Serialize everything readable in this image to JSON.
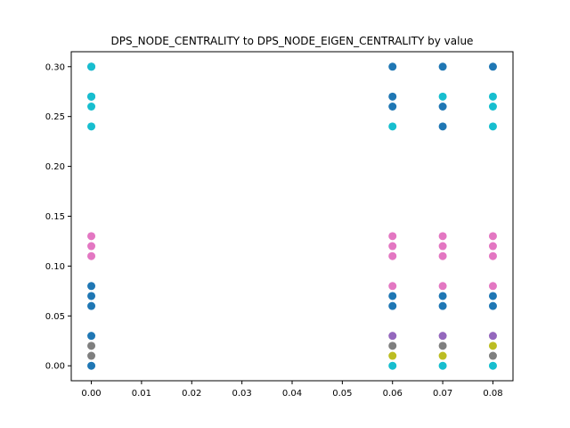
{
  "chart_data": {
    "type": "scatter",
    "title": "DPS_NODE_CENTRALITY to DPS_NODE_EIGEN_CENTRALITY by value",
    "xlabel": "",
    "ylabel": "",
    "xlim": [
      -0.004,
      0.084
    ],
    "ylim": [
      -0.015,
      0.315
    ],
    "xticks": [
      0.0,
      0.01,
      0.02,
      0.03,
      0.04,
      0.05,
      0.06,
      0.07,
      0.08
    ],
    "xtick_labels": [
      "0.00",
      "0.01",
      "0.02",
      "0.03",
      "0.04",
      "0.05",
      "0.06",
      "0.07",
      "0.08"
    ],
    "yticks": [
      0.0,
      0.05,
      0.1,
      0.15,
      0.2,
      0.25,
      0.3
    ],
    "ytick_labels": [
      "0.00",
      "0.05",
      "0.10",
      "0.15",
      "0.20",
      "0.25",
      "0.30"
    ],
    "grid": false,
    "series": [
      {
        "color": "#1f77b4",
        "points": [
          [
            0,
            0.3
          ],
          [
            0,
            0.27
          ],
          [
            0,
            0.08
          ],
          [
            0,
            0.07
          ],
          [
            0,
            0.06
          ],
          [
            0,
            0.03
          ],
          [
            0,
            0.0
          ],
          [
            0.06,
            0.3
          ],
          [
            0.06,
            0.27
          ],
          [
            0.06,
            0.26
          ],
          [
            0.06,
            0.07
          ],
          [
            0.06,
            0.06
          ],
          [
            0.07,
            0.3
          ],
          [
            0.07,
            0.26
          ],
          [
            0.07,
            0.24
          ],
          [
            0.07,
            0.07
          ],
          [
            0.07,
            0.06
          ],
          [
            0.08,
            0.3
          ],
          [
            0.08,
            0.07
          ],
          [
            0.08,
            0.06
          ]
        ]
      },
      {
        "color": "#9467bd",
        "points": [
          [
            0.06,
            0.03
          ],
          [
            0.07,
            0.03
          ],
          [
            0.08,
            0.03
          ]
        ]
      },
      {
        "color": "#e377c2",
        "points": [
          [
            0,
            0.13
          ],
          [
            0,
            0.12
          ],
          [
            0,
            0.11
          ],
          [
            0.06,
            0.13
          ],
          [
            0.06,
            0.12
          ],
          [
            0.06,
            0.11
          ],
          [
            0.06,
            0.08
          ],
          [
            0.07,
            0.13
          ],
          [
            0.07,
            0.12
          ],
          [
            0.07,
            0.11
          ],
          [
            0.07,
            0.08
          ],
          [
            0.08,
            0.13
          ],
          [
            0.08,
            0.12
          ],
          [
            0.08,
            0.11
          ],
          [
            0.08,
            0.08
          ]
        ]
      },
      {
        "color": "#7f7f7f",
        "points": [
          [
            0,
            0.02
          ],
          [
            0,
            0.01
          ],
          [
            0.06,
            0.02
          ],
          [
            0.07,
            0.02
          ],
          [
            0.08,
            0.01
          ]
        ]
      },
      {
        "color": "#bcbd22",
        "points": [
          [
            0.06,
            0.01
          ],
          [
            0.07,
            0.01
          ],
          [
            0.08,
            0.02
          ]
        ]
      },
      {
        "color": "#17becf",
        "points": [
          [
            0,
            0.3
          ],
          [
            0,
            0.27
          ],
          [
            0,
            0.26
          ],
          [
            0,
            0.24
          ],
          [
            0.06,
            0.24
          ],
          [
            0.06,
            0.0
          ],
          [
            0.07,
            0.27
          ],
          [
            0.07,
            0.0
          ],
          [
            0.08,
            0.27
          ],
          [
            0.08,
            0.26
          ],
          [
            0.08,
            0.24
          ],
          [
            0.08,
            0.0
          ]
        ]
      }
    ]
  }
}
